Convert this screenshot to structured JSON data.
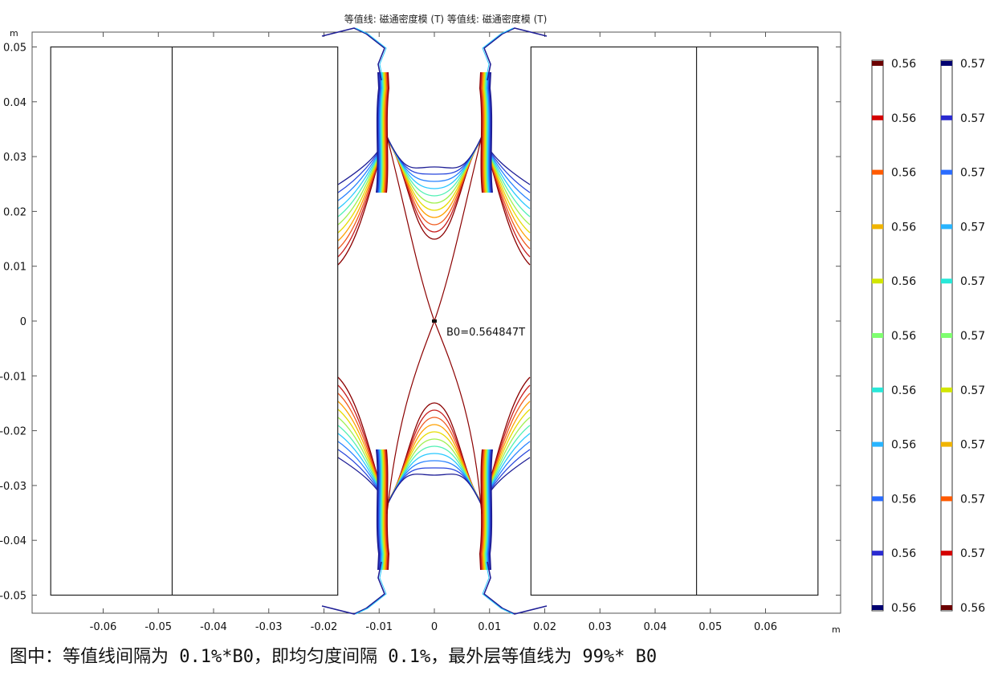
{
  "caption": "图中：等值线间隔为 0.1%*B0，即均匀度间隔 0.1%，最外层等值线为 99%* B0",
  "chart_data": {
    "type": "contour",
    "title": "等值线: 磁通密度模 (T)  等值线: 磁通密度模 (T)",
    "xlabel": "m",
    "ylabel": "m",
    "xlim": [
      -0.068,
      0.073
    ],
    "ylim": [
      -0.053,
      0.0515
    ],
    "xticks": [
      "-0.06",
      "-0.05",
      "-0.04",
      "-0.03",
      "-0.02",
      "-0.01",
      "0",
      "0.01",
      "0.02",
      "0.03",
      "0.04",
      "0.05",
      "0.06"
    ],
    "xtick_values": [
      -0.06,
      -0.05,
      -0.04,
      -0.03,
      -0.02,
      -0.01,
      0,
      0.01,
      0.02,
      0.03,
      0.04,
      0.05,
      0.06
    ],
    "yticks": [
      "0.05",
      "0.04",
      "0.03",
      "0.02",
      "0.01",
      "0",
      "-0.01",
      "-0.02",
      "-0.03",
      "-0.04",
      "-0.05"
    ],
    "ytick_values": [
      0.05,
      0.04,
      0.03,
      0.02,
      0.01,
      0,
      -0.01,
      -0.02,
      -0.03,
      -0.04,
      -0.05
    ],
    "magnets": [
      {
        "x": [
          -0.0695,
          -0.0175
        ],
        "y": [
          -0.05,
          0.05
        ],
        "divider_x": -0.0475
      },
      {
        "x": [
          0.0175,
          0.0695
        ],
        "y": [
          -0.05,
          0.05
        ],
        "divider_x": 0.0475
      }
    ],
    "annotation": {
      "text": "B0=0.564847T",
      "x": 0.0,
      "y": 0.0
    },
    "legends": [
      {
        "labels": [
          "0.56",
          "0.56",
          "0.56",
          "0.56",
          "0.56",
          "0.56",
          "0.56",
          "0.56",
          "0.56",
          "0.56",
          "0.56"
        ],
        "colors": [
          "#6b0000",
          "#d40000",
          "#ff5a00",
          "#f0b400",
          "#d2e600",
          "#7fff70",
          "#28e8d8",
          "#28b4ff",
          "#2a6cff",
          "#2a2ad0",
          "#000070"
        ]
      },
      {
        "labels": [
          "0.57",
          "0.57",
          "0.57",
          "0.57",
          "0.57",
          "0.57",
          "0.57",
          "0.57",
          "0.57",
          "0.57",
          "0.56"
        ],
        "colors": [
          "#000070",
          "#2a2ad0",
          "#2a6cff",
          "#28b4ff",
          "#28e8d8",
          "#7fff70",
          "#d2e600",
          "#f0b400",
          "#ff5a00",
          "#d40000",
          "#6b0000"
        ]
      }
    ],
    "contour_colors": [
      "#8b0000",
      "#c81e1e",
      "#f05a1e",
      "#ffa000",
      "#e6dc00",
      "#a0f050",
      "#50f0b4",
      "#28c8ff",
      "#2882ff",
      "#2846dc",
      "#1e1e96"
    ]
  }
}
